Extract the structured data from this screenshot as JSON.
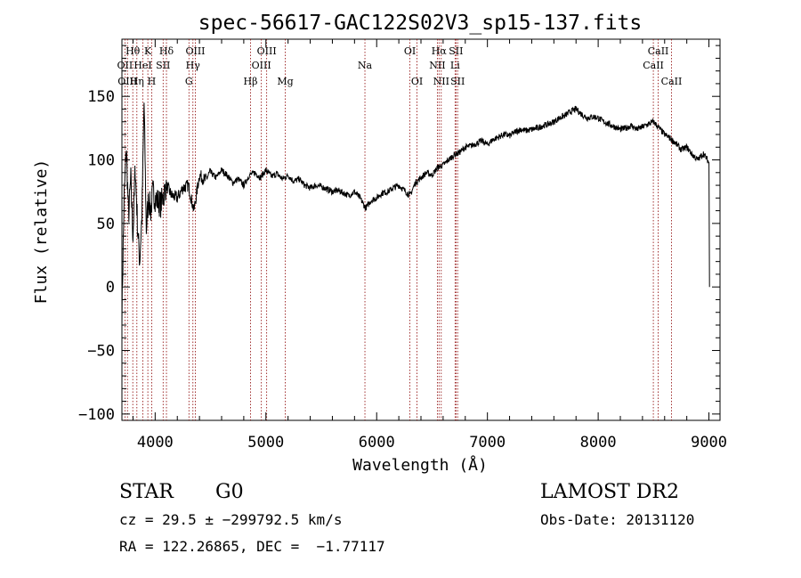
{
  "chart_data": {
    "type": "line",
    "title": "spec-56617-GAC122S02V3_sp15-137.fits",
    "xlabel": "Wavelength (Å)",
    "ylabel": "Flux (relative)",
    "xlim": [
      3700,
      9100
    ],
    "ylim": [
      -105,
      195
    ],
    "xticks": [
      4000,
      5000,
      6000,
      7000,
      8000,
      9000
    ],
    "xtick_labels": [
      "4000",
      "5000",
      "6000",
      "7000",
      "8000",
      "9000"
    ],
    "yticks": [
      -100,
      -50,
      0,
      50,
      100,
      150
    ],
    "ytick_labels": [
      "−100",
      "−50",
      "0",
      "50",
      "100",
      "150"
    ],
    "grid": false,
    "line_color": "#000000",
    "marker_color": "#8b0000",
    "series": [
      {
        "x": [
          3700,
          3720,
          3740,
          3760,
          3780,
          3800,
          3820,
          3840,
          3860,
          3880,
          3900,
          3920,
          3940,
          3960,
          3980,
          4000,
          4050,
          4100,
          4150,
          4200,
          4250,
          4300,
          4350,
          4400,
          4450,
          4500,
          4550,
          4600,
          4650,
          4700,
          4750,
          4800,
          4850,
          4900,
          4950,
          5000,
          5050,
          5100,
          5150,
          5200,
          5250,
          5300,
          5350,
          5400,
          5450,
          5500,
          5550,
          5600,
          5650,
          5700,
          5750,
          5800,
          5850,
          5900,
          5950,
          6000,
          6050,
          6100,
          6150,
          6200,
          6250,
          6300,
          6350,
          6400,
          6450,
          6500,
          6550,
          6600,
          6650,
          6700,
          6750,
          6800,
          6850,
          6900,
          6950,
          7000,
          7050,
          7100,
          7150,
          7200,
          7250,
          7300,
          7350,
          7400,
          7450,
          7500,
          7550,
          7600,
          7650,
          7700,
          7750,
          7800,
          7850,
          7900,
          7950,
          8000,
          8050,
          8100,
          8150,
          8200,
          8250,
          8300,
          8350,
          8400,
          8450,
          8500,
          8550,
          8600,
          8650,
          8700,
          8750,
          8800,
          8850,
          8900,
          8950,
          9000,
          9005
        ],
        "y": [
          -20,
          70,
          110,
          55,
          85,
          40,
          95,
          50,
          20,
          55,
          145,
          45,
          70,
          60,
          75,
          70,
          65,
          80,
          72,
          70,
          78,
          80,
          60,
          88,
          84,
          90,
          86,
          92,
          88,
          82,
          85,
          80,
          88,
          90,
          86,
          92,
          87,
          89,
          85,
          88,
          83,
          85,
          80,
          78,
          80,
          79,
          77,
          75,
          76,
          74,
          72,
          75,
          70,
          62,
          68,
          70,
          74,
          75,
          78,
          80,
          76,
          72,
          82,
          86,
          90,
          88,
          94,
          96,
          100,
          104,
          106,
          110,
          111,
          113,
          115,
          112,
          116,
          118,
          120,
          119,
          122,
          124,
          123,
          124,
          125,
          127,
          128,
          130,
          133,
          135,
          138,
          140,
          136,
          133,
          134,
          133,
          130,
          128,
          126,
          124,
          125,
          127,
          124,
          126,
          128,
          130,
          125,
          120,
          117,
          113,
          108,
          110,
          104,
          100,
          105,
          98,
          0
        ]
      }
    ],
    "lines": [
      {
        "name": "Hθ",
        "x": 3798,
        "row": 1
      },
      {
        "name": "OII",
        "x": 3727,
        "row": 2
      },
      {
        "name": "OIII",
        "x": 3750,
        "row": 3
      },
      {
        "name": "K",
        "x": 3934,
        "row": 1
      },
      {
        "name": "HeI",
        "x": 3889,
        "row": 2
      },
      {
        "name": "Hη",
        "x": 3835,
        "row": 3
      },
      {
        "name": "Hδ",
        "x": 4102,
        "row": 1
      },
      {
        "name": "SII",
        "x": 4072,
        "row": 2
      },
      {
        "name": "H",
        "x": 3969,
        "row": 3
      },
      {
        "name": "OIII",
        "x": 4363,
        "row": 1
      },
      {
        "name": "Hγ",
        "x": 4341,
        "row": 2
      },
      {
        "name": "G",
        "x": 4305,
        "row": 3
      },
      {
        "name": "OIII",
        "x": 5007,
        "row": 1
      },
      {
        "name": "OIII",
        "x": 4959,
        "row": 2
      },
      {
        "name": "Hβ",
        "x": 4861,
        "row": 3
      },
      {
        "name": "Mg",
        "x": 5175,
        "row": 3
      },
      {
        "name": "Na",
        "x": 5894,
        "row": 2
      },
      {
        "name": "OI",
        "x": 6300,
        "row": 1
      },
      {
        "name": "OI",
        "x": 6364,
        "row": 3
      },
      {
        "name": "Hα",
        "x": 6563,
        "row": 1
      },
      {
        "name": "NII",
        "x": 6548,
        "row": 2
      },
      {
        "name": "NII",
        "x": 6583,
        "row": 3
      },
      {
        "name": "SII",
        "x": 6716,
        "row": 1
      },
      {
        "name": "Li",
        "x": 6708,
        "row": 2
      },
      {
        "name": "SII",
        "x": 6731,
        "row": 3
      },
      {
        "name": "CaII",
        "x": 8542,
        "row": 1
      },
      {
        "name": "CaII",
        "x": 8498,
        "row": 2
      },
      {
        "name": "CaII",
        "x": 8662,
        "row": 3
      }
    ]
  },
  "info": {
    "class_label": "STAR",
    "subclass_label": "G0",
    "survey": "LAMOST DR2",
    "cz": "cz = 29.5 ± −299792.5 km/s",
    "obs_date": "Obs-Date: 20131120",
    "radec": "RA = 122.26865, DEC =  −1.77117"
  }
}
